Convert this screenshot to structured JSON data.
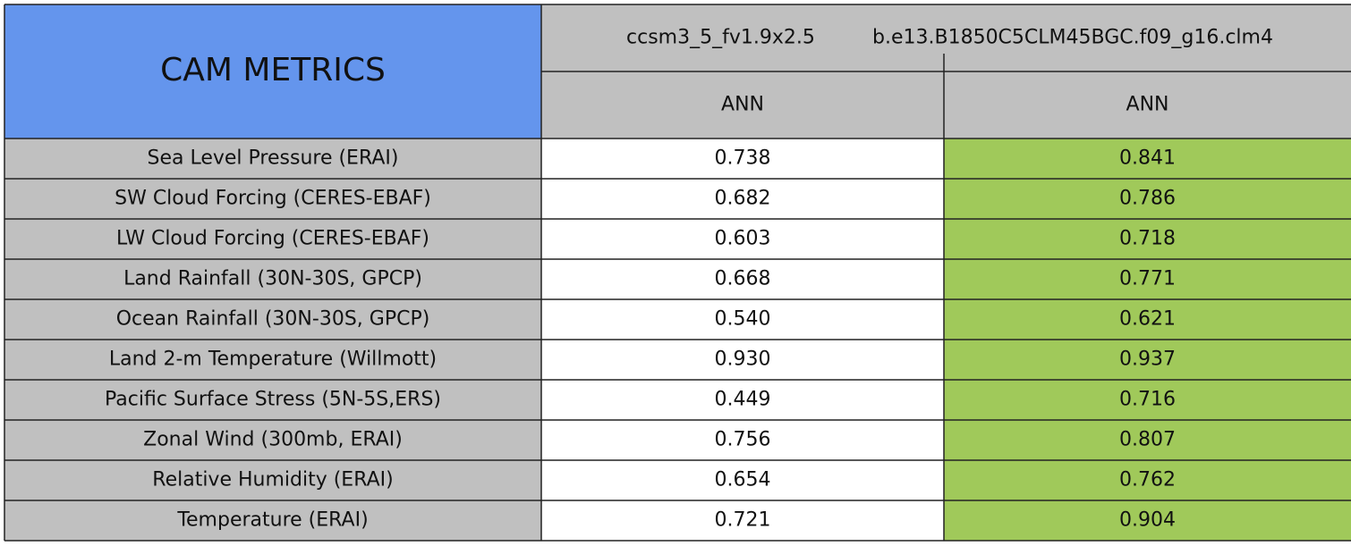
{
  "header": {
    "title": "CAM METRICS",
    "columns": [
      "ccsm3_5_fv1.9x2.5",
      "b.e13.B1850C5CLM45BGC.f09_g16.clm4"
    ],
    "seasons": [
      "ANN",
      "ANN"
    ]
  },
  "table": {
    "rows": [
      [
        "Sea Level Pressure (ERAI)",
        "0.738",
        "0.841"
      ],
      [
        "SW Cloud Forcing (CERES-EBAF)",
        "0.682",
        "0.786"
      ],
      [
        "LW Cloud Forcing (CERES-EBAF)",
        "0.603",
        "0.718"
      ],
      [
        "Land Rainfall (30N-30S, GPCP)",
        "0.668",
        "0.771"
      ],
      [
        "Ocean Rainfall (30N-30S, GPCP)",
        "0.540",
        "0.621"
      ],
      [
        "Land 2-m Temperature (Willmott)",
        "0.930",
        "0.937"
      ],
      [
        "Pacific Surface Stress (5N-5S,ERS)",
        "0.449",
        "0.716"
      ],
      [
        "Zonal Wind (300mb, ERAI)",
        "0.756",
        "0.807"
      ],
      [
        "Relative Humidity (ERAI)",
        "0.654",
        "0.762"
      ],
      [
        "Temperature (ERAI)",
        "0.721",
        "0.904"
      ]
    ]
  }
}
